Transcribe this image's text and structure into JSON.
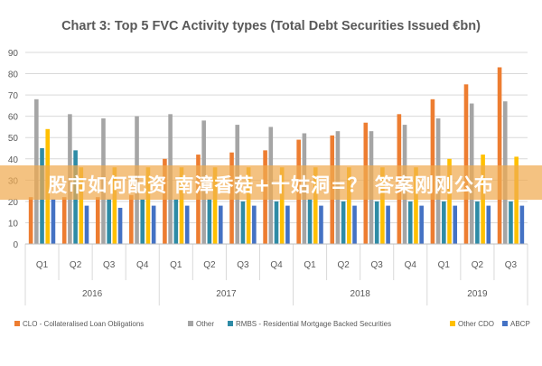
{
  "chart_data": {
    "type": "bar",
    "title": "Chart 3: Top 5 FVC Activity types (Total Debt Securities Issued €bn)",
    "ylim": [
      0,
      90
    ],
    "yticks": [
      0,
      10,
      20,
      30,
      40,
      50,
      60,
      70,
      80,
      90
    ],
    "grid": true,
    "legend_position": "bottom",
    "quarters": [
      "Q1",
      "Q2",
      "Q3",
      "Q4",
      "Q1",
      "Q2",
      "Q3",
      "Q4",
      "Q1",
      "Q2",
      "Q3",
      "Q4",
      "Q1",
      "Q2",
      "Q3"
    ],
    "years": [
      {
        "label": "2016",
        "span": 4
      },
      {
        "label": "2017",
        "span": 4
      },
      {
        "label": "2018",
        "span": 4
      },
      {
        "label": "2019",
        "span": 3
      }
    ],
    "series": [
      {
        "name": "CLO - Collateralised Loan Obligations",
        "color": "#ED7D31",
        "values": [
          22,
          22,
          22,
          23,
          40,
          42,
          43,
          44,
          49,
          51,
          57,
          61,
          68,
          75,
          83
        ]
      },
      {
        "name": "Other",
        "color": "#A5A5A5",
        "values": [
          68,
          61,
          59,
          60,
          61,
          58,
          56,
          55,
          52,
          53,
          53,
          56,
          59,
          66,
          67
        ]
      },
      {
        "name": "RMBS - Residential Mortgage Backed Securities",
        "color": "#2E8BA6",
        "values": [
          45,
          44,
          21,
          21,
          21,
          21,
          20,
          20,
          21,
          20,
          20,
          20,
          20,
          20,
          20
        ]
      },
      {
        "name": "Other CDO",
        "color": "#FFC000",
        "values": [
          54,
          36,
          36,
          36,
          36,
          36,
          36,
          36,
          36,
          36,
          36,
          36,
          40,
          42,
          41
        ]
      },
      {
        "name": "ABCP",
        "color": "#4472C4",
        "values": [
          21,
          18,
          17,
          18,
          18,
          18,
          18,
          18,
          18,
          18,
          18,
          18,
          18,
          18,
          18
        ]
      }
    ]
  },
  "overlay": {
    "text": "股市如何配资 南漳香菇+十姑洞=？ 答案刚刚公布"
  }
}
